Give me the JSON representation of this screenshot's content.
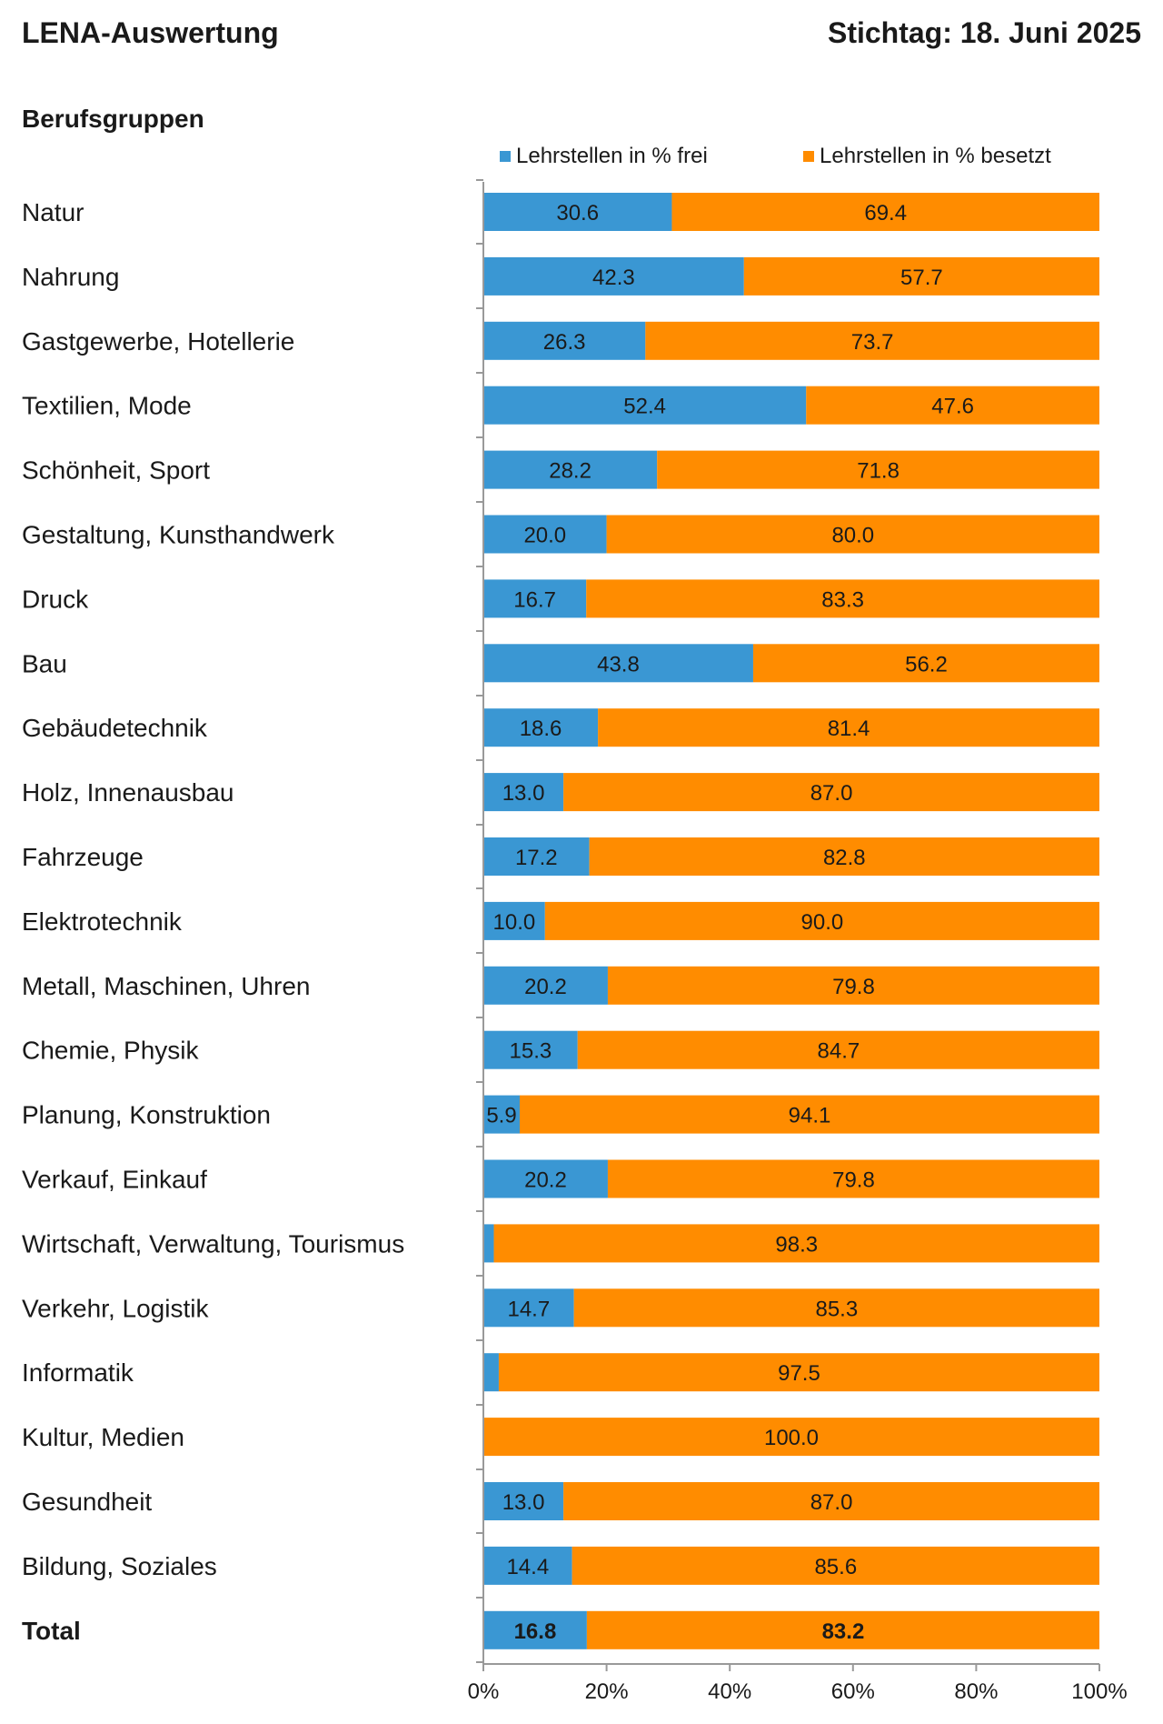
{
  "header": {
    "title": "LENA-Auswertung",
    "date": "Stichtag: 18. Juni 2025",
    "group_label": "Berufsgruppen"
  },
  "colors": {
    "frei": "#3a97d3",
    "besetzt": "#ff8c00"
  },
  "chart_data": {
    "type": "bar",
    "orientation": "horizontal",
    "stacked": true,
    "percent": true,
    "legend_position": "top",
    "categories": [
      "Natur",
      "Nahrung",
      "Gastgewerbe, Hotellerie",
      "Textilien, Mode",
      "Schönheit, Sport",
      "Gestaltung, Kunsthandwerk",
      "Druck",
      "Bau",
      "Gebäudetechnik",
      "Holz, Innenausbau",
      "Fahrzeuge",
      "Elektrotechnik",
      "Metall, Maschinen, Uhren",
      "Chemie, Physik",
      "Planung, Konstruktion",
      "Verkauf, Einkauf",
      "Wirtschaft, Verwaltung, Tourismus",
      "Verkehr, Logistik",
      "Informatik",
      "Kultur, Medien",
      "Gesundheit",
      "Bildung, Soziales",
      "Total"
    ],
    "series": [
      {
        "name": "Lehrstellen in % frei",
        "values": [
          30.6,
          42.3,
          26.3,
          52.4,
          28.2,
          20.0,
          16.7,
          43.8,
          18.6,
          13.0,
          17.2,
          10.0,
          20.2,
          15.3,
          5.9,
          20.2,
          1.7,
          14.7,
          2.5,
          0.0,
          13.0,
          14.4,
          16.8
        ],
        "labels": [
          "30.6",
          "42.3",
          "26.3",
          "52.4",
          "28.2",
          "20.0",
          "16.7",
          "43.8",
          "18.6",
          "13.0",
          "17.2",
          "10.0",
          "20.2",
          "15.3",
          "5.9",
          "20.2",
          "",
          "14.7",
          "",
          "",
          "13.0",
          "14.4",
          "16.8"
        ]
      },
      {
        "name": "Lehrstellen in % besetzt",
        "values": [
          69.4,
          57.7,
          73.7,
          47.6,
          71.8,
          80.0,
          83.3,
          56.2,
          81.4,
          87.0,
          82.8,
          90.0,
          79.8,
          84.7,
          94.1,
          79.8,
          98.3,
          85.3,
          97.5,
          100.0,
          87.0,
          85.6,
          83.2
        ],
        "labels": [
          "69.4",
          "57.7",
          "73.7",
          "47.6",
          "71.8",
          "80.0",
          "83.3",
          "56.2",
          "81.4",
          "87.0",
          "82.8",
          "90.0",
          "79.8",
          "84.7",
          "94.1",
          "79.8",
          "98.3",
          "85.3",
          "97.5",
          "100.0",
          "87.0",
          "85.6",
          "83.2"
        ]
      }
    ],
    "bold_categories": [
      "Total"
    ],
    "xlim": [
      0,
      100
    ],
    "xticks": [
      "0%",
      "20%",
      "40%",
      "60%",
      "80%",
      "100%"
    ],
    "grid": false
  }
}
